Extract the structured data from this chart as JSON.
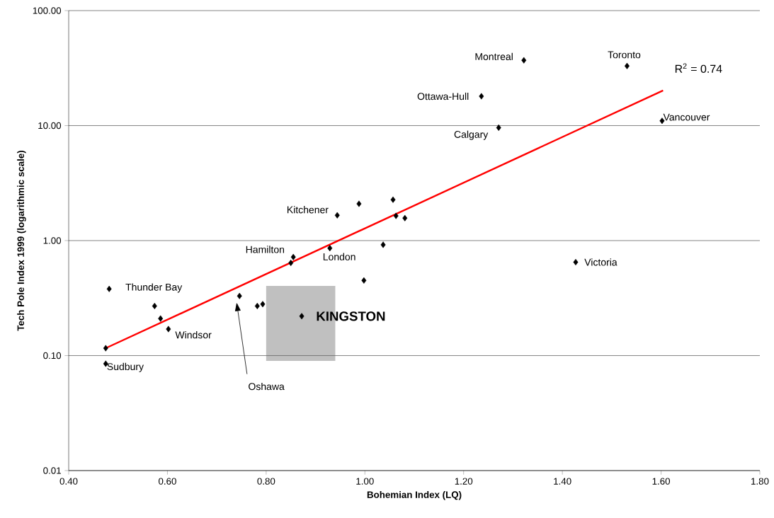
{
  "chart_data": {
    "type": "scatter",
    "xlabel": "Bohemian Index (LQ)",
    "ylabel": "Tech Pole Index 1999 (logarithmic scale)",
    "series": [
      {
        "color": "#000000",
        "marker": "diamond",
        "x": [
          1.322,
          1.531,
          1.236,
          1.271,
          1.602,
          0.944,
          0.988,
          1.057,
          1.063,
          1.081,
          0.929,
          0.855,
          0.85,
          1.037,
          0.998,
          1.427,
          0.482,
          0.574,
          0.586,
          0.602,
          0.746,
          0.782,
          0.793,
          0.872,
          0.475,
          0.475
        ],
        "values": [
          37,
          33,
          18,
          9.6,
          11,
          1.66,
          2.09,
          2.27,
          1.64,
          1.57,
          0.86,
          0.72,
          0.64,
          0.92,
          0.45,
          0.65,
          0.38,
          0.27,
          0.21,
          0.17,
          0.33,
          0.27,
          0.28,
          0.22,
          0.116,
          0.085
        ]
      },
      {
        "type": "line",
        "color": "#ff0000",
        "marker": "none",
        "x": [
          0.475,
          1.604
        ],
        "values": [
          0.116,
          20.2
        ]
      }
    ],
    "xlim": [
      0.4,
      1.8
    ],
    "ylim": [
      0.01,
      100
    ],
    "log": "y",
    "grid": "y",
    "xticks": [
      {
        "value": 0.4,
        "label": "0.40"
      },
      {
        "value": 0.6,
        "label": "0.60"
      },
      {
        "value": 0.8,
        "label": "0.80"
      },
      {
        "value": 1.0,
        "label": "1.00"
      },
      {
        "value": 1.2,
        "label": "1.20"
      },
      {
        "value": 1.4,
        "label": "1.40"
      },
      {
        "value": 1.6,
        "label": "1.60"
      },
      {
        "value": 1.8,
        "label": "1.80"
      }
    ],
    "yticks": [
      {
        "value": 0.01,
        "label": "0.01"
      },
      {
        "value": 0.1,
        "label": "0.10"
      },
      {
        "value": 1,
        "label": "1.00"
      },
      {
        "value": 10,
        "label": "10.00"
      },
      {
        "value": 100,
        "label": "100.00"
      }
    ],
    "annotations": [
      {
        "text": "Montreal",
        "x": 1.322,
        "y": 37
      },
      {
        "text": "Toronto",
        "x": 1.531,
        "y": 33
      },
      {
        "text": "Ottawa-Hull",
        "x": 1.236,
        "y": 18
      },
      {
        "text": "Calgary",
        "x": 1.271,
        "y": 9.6
      },
      {
        "text": "Vancouver",
        "x": 1.602,
        "y": 11
      },
      {
        "text": "Kitchener",
        "x": 0.944,
        "y": 1.66
      },
      {
        "text": "Hamilton",
        "x": 0.855,
        "y": 0.72
      },
      {
        "text": "London",
        "x": 0.929,
        "y": 0.86
      },
      {
        "text": "Victoria",
        "x": 1.427,
        "y": 0.65
      },
      {
        "text": "Thunder Bay",
        "x": 0.482,
        "y": 0.38
      },
      {
        "text": "Windsor",
        "x": 0.602,
        "y": 0.17
      },
      {
        "text": "Sudbury",
        "x": 0.475,
        "y": 0.085
      },
      "Oshawa",
      {
        "text": "KINGSTON",
        "x": 0.872,
        "y": 0.22
      },
      "R$^{2}$ = 0.74"
    ]
  }
}
